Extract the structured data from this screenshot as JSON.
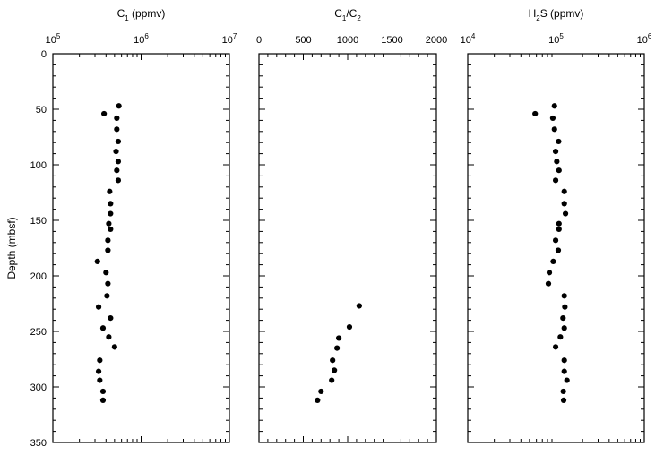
{
  "chart_data": [
    {
      "type": "scatter",
      "title": "C1 (ppmv)",
      "title_parts": {
        "main": "C",
        "sub": "1",
        "rest": " (ppmv)"
      },
      "xscale": "log",
      "xlim": [
        100000,
        10000000
      ],
      "x_ticks": [
        {
          "value": 100000,
          "base": "10",
          "exp": "5"
        },
        {
          "value": 1000000,
          "base": "10",
          "exp": "6"
        },
        {
          "value": 10000000,
          "base": "10",
          "exp": "7"
        }
      ],
      "ylabel": "Depth (mbsf)",
      "ylim": [
        350,
        0
      ],
      "y_ticks": [
        0,
        50,
        100,
        150,
        200,
        250,
        300,
        350
      ],
      "points": [
        {
          "x": 560000,
          "y": 47
        },
        {
          "x": 380000,
          "y": 54
        },
        {
          "x": 530000,
          "y": 58
        },
        {
          "x": 530000,
          "y": 68
        },
        {
          "x": 550000,
          "y": 79
        },
        {
          "x": 520000,
          "y": 88
        },
        {
          "x": 550000,
          "y": 97
        },
        {
          "x": 530000,
          "y": 105
        },
        {
          "x": 550000,
          "y": 114
        },
        {
          "x": 440000,
          "y": 124
        },
        {
          "x": 450000,
          "y": 135
        },
        {
          "x": 450000,
          "y": 144
        },
        {
          "x": 430000,
          "y": 153
        },
        {
          "x": 450000,
          "y": 158
        },
        {
          "x": 420000,
          "y": 168
        },
        {
          "x": 420000,
          "y": 177
        },
        {
          "x": 320000,
          "y": 187
        },
        {
          "x": 400000,
          "y": 197
        },
        {
          "x": 420000,
          "y": 207
        },
        {
          "x": 410000,
          "y": 218
        },
        {
          "x": 330000,
          "y": 228
        },
        {
          "x": 450000,
          "y": 238
        },
        {
          "x": 370000,
          "y": 247
        },
        {
          "x": 430000,
          "y": 255
        },
        {
          "x": 500000,
          "y": 264
        },
        {
          "x": 340000,
          "y": 276
        },
        {
          "x": 330000,
          "y": 286
        },
        {
          "x": 340000,
          "y": 294
        },
        {
          "x": 370000,
          "y": 304
        },
        {
          "x": 370000,
          "y": 312
        }
      ]
    },
    {
      "type": "scatter",
      "title": "C1/C2",
      "title_parts": {
        "main": "C",
        "sub": "1",
        "mid": "/C",
        "sub2": "2"
      },
      "xscale": "linear",
      "xlim": [
        0,
        2000
      ],
      "x_ticks": [
        0,
        500,
        1000,
        1500,
        2000
      ],
      "ylim": [
        350,
        0
      ],
      "points": [
        {
          "x": 1130,
          "y": 227
        },
        {
          "x": 1020,
          "y": 246
        },
        {
          "x": 900,
          "y": 256
        },
        {
          "x": 880,
          "y": 265
        },
        {
          "x": 830,
          "y": 276
        },
        {
          "x": 850,
          "y": 285
        },
        {
          "x": 820,
          "y": 294
        },
        {
          "x": 700,
          "y": 304
        },
        {
          "x": 660,
          "y": 312
        }
      ]
    },
    {
      "type": "scatter",
      "title": "H2S (ppmv)",
      "title_parts": {
        "main": "H",
        "sub": "2",
        "rest": "S (ppmv)"
      },
      "xscale": "log",
      "xlim": [
        10000,
        1000000
      ],
      "x_ticks": [
        {
          "value": 10000,
          "base": "10",
          "exp": "4"
        },
        {
          "value": 100000,
          "base": "10",
          "exp": "5"
        },
        {
          "value": 1000000,
          "base": "10",
          "exp": "6"
        }
      ],
      "ylim": [
        350,
        0
      ],
      "points": [
        {
          "x": 96000,
          "y": 47
        },
        {
          "x": 58000,
          "y": 54
        },
        {
          "x": 92000,
          "y": 58
        },
        {
          "x": 96000,
          "y": 68
        },
        {
          "x": 107000,
          "y": 79
        },
        {
          "x": 99000,
          "y": 88
        },
        {
          "x": 102000,
          "y": 97
        },
        {
          "x": 108000,
          "y": 105
        },
        {
          "x": 99000,
          "y": 114
        },
        {
          "x": 124000,
          "y": 124
        },
        {
          "x": 124000,
          "y": 135
        },
        {
          "x": 128000,
          "y": 144
        },
        {
          "x": 108000,
          "y": 153
        },
        {
          "x": 108000,
          "y": 158
        },
        {
          "x": 99000,
          "y": 168
        },
        {
          "x": 106000,
          "y": 177
        },
        {
          "x": 93000,
          "y": 187
        },
        {
          "x": 84000,
          "y": 197
        },
        {
          "x": 82000,
          "y": 207
        },
        {
          "x": 124000,
          "y": 218
        },
        {
          "x": 126000,
          "y": 228
        },
        {
          "x": 120000,
          "y": 238
        },
        {
          "x": 124000,
          "y": 247
        },
        {
          "x": 112000,
          "y": 255
        },
        {
          "x": 99000,
          "y": 264
        },
        {
          "x": 124000,
          "y": 276
        },
        {
          "x": 124000,
          "y": 286
        },
        {
          "x": 133000,
          "y": 294
        },
        {
          "x": 121000,
          "y": 304
        },
        {
          "x": 122000,
          "y": 312
        }
      ]
    }
  ]
}
